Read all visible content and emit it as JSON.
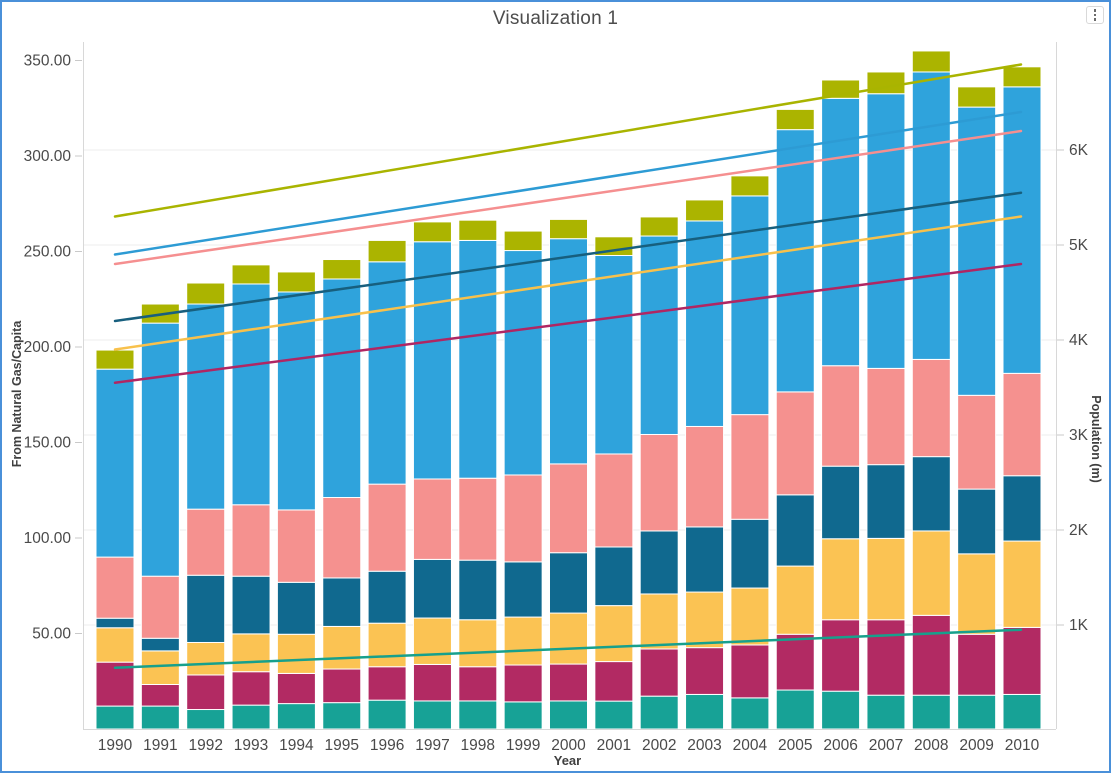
{
  "window": {
    "border_color": "#4a90d9"
  },
  "header": {
    "title": "Visualization 1",
    "menu_icon": "kebab-vertical-icon"
  },
  "chart_data": {
    "type": "bar",
    "stacked": true,
    "title": "Visualization 1",
    "xlabel": "Year",
    "ylabel_left": "From Natural Gas/Capita",
    "ylabel_right": "Population (m)",
    "grid": "horizontal",
    "legend": "none",
    "ylim_left": [
      0,
      362
    ],
    "ylim_right_thousands": [
      0,
      7.2
    ],
    "y_ticks_left": [
      "350.00",
      "300.00",
      "250.00",
      "200.00",
      "150.00",
      "100.00",
      "50.00"
    ],
    "y_ticks_right": [
      "6K",
      "5K",
      "4K",
      "3K",
      "2K",
      "1K"
    ],
    "categories": [
      "1990",
      "1991",
      "1992",
      "1993",
      "1994",
      "1995",
      "1996",
      "1997",
      "1998",
      "1999",
      "2000",
      "2001",
      "2002",
      "2003",
      "2004",
      "2005",
      "2006",
      "2007",
      "2008",
      "2009",
      "2010"
    ],
    "series": [
      {
        "name": "teal",
        "color": "#17a296",
        "values": [
          12,
          12,
          10.2,
          12.5,
          13.3,
          13.8,
          15.1,
          14.7,
          14.7,
          14.2,
          14.7,
          14.6,
          17.2,
          18.1,
          16.3,
          20.4,
          19.8,
          17.7,
          17.7,
          17.7,
          18.1
        ]
      },
      {
        "name": "crimson",
        "color": "#b22a63",
        "values": [
          23,
          11.3,
          18.1,
          17.5,
          15.8,
          17.6,
          17.5,
          19.1,
          17.9,
          19.3,
          19.3,
          20.7,
          24.7,
          24.5,
          27.7,
          29.2,
          37.4,
          39.5,
          41.8,
          31.9,
          35.1
        ]
      },
      {
        "name": "amber",
        "color": "#fbc353",
        "values": [
          18,
          17.6,
          17,
          19.8,
          20.5,
          22.3,
          22.8,
          24.3,
          24.6,
          25.1,
          26.7,
          29.3,
          28.8,
          29.1,
          29.8,
          35.7,
          42.4,
          42.6,
          44.2,
          42.1,
          45.2
        ]
      },
      {
        "name": "dark-blue",
        "color": "#10698f",
        "values": [
          5,
          6.6,
          35.2,
          30.2,
          27.2,
          25.4,
          27.2,
          30.7,
          31.2,
          28.9,
          31.6,
          30.7,
          33,
          34.1,
          36,
          37.3,
          38,
          38.6,
          38.9,
          33.9,
          34.2
        ]
      },
      {
        "name": "rose",
        "color": "#f5918f",
        "values": [
          32,
          32.5,
          34.6,
          37.4,
          37.9,
          42.1,
          45.6,
          42.1,
          42.9,
          45.5,
          46.5,
          48.7,
          50.5,
          52.6,
          54.8,
          53.9,
          52.6,
          50.4,
          50.9,
          49.1,
          53.6
        ]
      },
      {
        "name": "sky-blue",
        "color": "#2fa3dc",
        "values": [
          98.4,
          132.5,
          107.4,
          115.6,
          114.1,
          114.4,
          116.4,
          124.2,
          124.5,
          117.5,
          117.9,
          103.9,
          103.9,
          107.6,
          114.5,
          137.3,
          140,
          143.8,
          150.5,
          150.9,
          150
        ]
      },
      {
        "name": "olive",
        "color": "#abb400",
        "values": [
          10,
          10,
          11,
          10,
          10.5,
          10.2,
          11.2,
          10.4,
          10.6,
          10.2,
          10.1,
          9.8,
          10,
          11,
          10.5,
          10.6,
          9.6,
          11.4,
          11,
          10.6,
          10.5
        ]
      }
    ],
    "trend_lines": [
      {
        "name": "olive-trend",
        "color": "#a9b400",
        "axis": "right",
        "start_k": 5.3,
        "end_k": 6.9
      },
      {
        "name": "sky-trend",
        "color": "#2d9bd4",
        "axis": "right",
        "start_k": 4.9,
        "end_k": 6.4
      },
      {
        "name": "rose-trend",
        "color": "#f58f90",
        "axis": "right",
        "start_k": 4.8,
        "end_k": 6.2
      },
      {
        "name": "slate-trend",
        "color": "#175f7e",
        "axis": "right",
        "start_k": 4.2,
        "end_k": 5.55
      },
      {
        "name": "amber-trend",
        "color": "#f8c14c",
        "axis": "right",
        "start_k": 3.9,
        "end_k": 5.3
      },
      {
        "name": "crimson-trend",
        "color": "#b02663",
        "axis": "right",
        "start_k": 3.55,
        "end_k": 4.8
      },
      {
        "name": "teal-trend",
        "color": "#17a08c",
        "axis": "right",
        "start_k": 0.55,
        "end_k": 0.95
      }
    ]
  }
}
